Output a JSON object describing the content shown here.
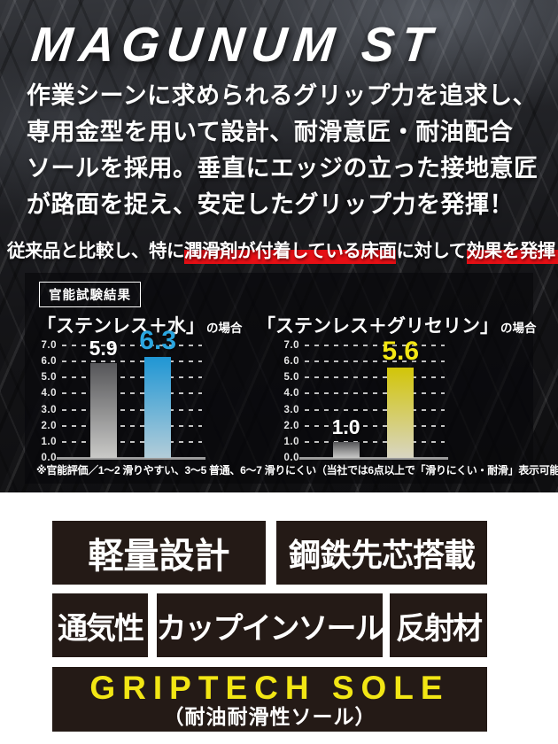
{
  "logo": {
    "text": "MAGUNUM ST"
  },
  "intro": {
    "lines": [
      "作業シーンに求められるグリップ力を追求し、",
      "専用金型を用いて設計、耐滑意匠・耐油配合",
      "ソールを採用。垂直にエッジの立った接地意匠",
      "が路面を捉え、安定したグリップ力を発揮！"
    ]
  },
  "highlight_line": {
    "segments": [
      {
        "text": "従来品と比較し、特に",
        "highlight": false
      },
      {
        "text": "潤滑剤が付着している床面",
        "highlight": true
      },
      {
        "text": "に対して",
        "highlight": false
      },
      {
        "text": "効果を発揮！",
        "highlight": true
      }
    ]
  },
  "test_panel": {
    "badge": "官能試験結果",
    "footnote": "※官能評価／1～2 滑りやすい、3～5 普通、6～7 滑りにくい（当社では6点以上で「滑りにくい・耐滑」表示可能）"
  },
  "chart_data": {
    "type": "bar",
    "title": "官能試験結果",
    "ylim": [
      0,
      7
    ],
    "y_ticks": [
      7,
      6,
      5,
      4,
      3,
      2,
      1,
      0
    ],
    "grid": "dashed horizontal gridlines at each 1.0, solid baseline at 0.0",
    "legend_position": "none",
    "charts": [
      {
        "title": "「ステンレス＋水」",
        "title_suffix": "の場合",
        "bars": [
          {
            "value": 5.9,
            "color_key": "gray",
            "label_color": "#ffffff"
          },
          {
            "value": 6.3,
            "color_key": "blue",
            "label_color": "#2ba6e0"
          }
        ]
      },
      {
        "title": "「ステンレス＋グリセリン」",
        "title_suffix": "の場合",
        "bars": [
          {
            "value": 1.0,
            "color_key": "gray",
            "label_color": "#ffffff"
          },
          {
            "value": 5.6,
            "color_key": "yellow",
            "label_color": "#f2e614"
          }
        ]
      }
    ]
  },
  "features": {
    "row1": [
      "軽量設計",
      "鋼鉄先芯搭載"
    ],
    "row2": [
      "通気性",
      "カップインソール",
      "反射材"
    ]
  },
  "sole_badge": {
    "title": "GRIPTECH SOLE",
    "subtitle": "（耐油耐滑性ソール）"
  },
  "colors": {
    "accent_red": "#e60f15",
    "badge_black": "#241a16",
    "griptech_yellow": "#f2e614",
    "bar_gray_top": "#565659",
    "bar_gray_bottom": "#c9c9c7",
    "bar_blue_top": "#1f96d4",
    "bar_blue_bottom": "#b3cdd9",
    "bar_yellow_top": "#d2c508",
    "bar_yellow_bottom": "#d8d5c3",
    "label_blue": "#2ba6e0",
    "label_yellow": "#f2e614"
  }
}
